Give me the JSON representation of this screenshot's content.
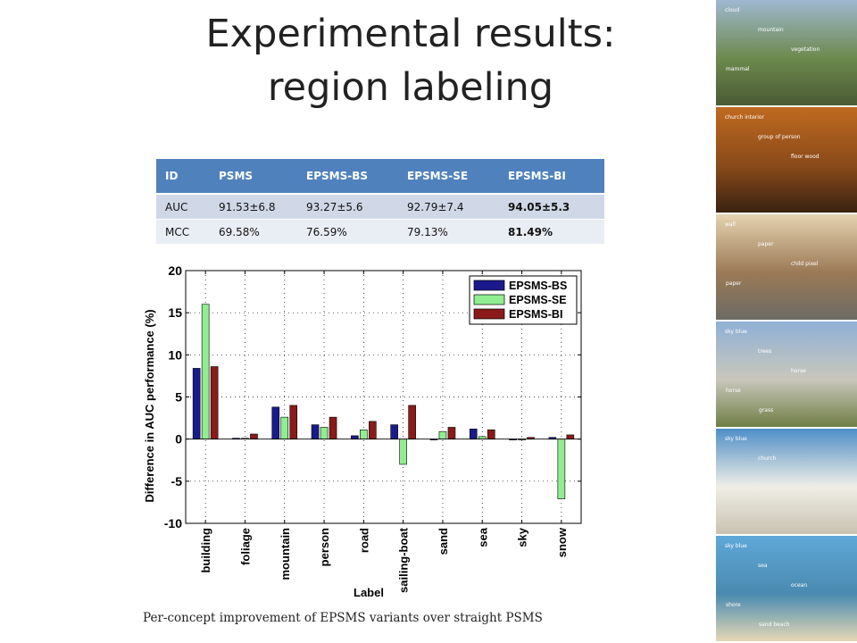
{
  "slide": {
    "title_line1": "Experimental results:",
    "title_line2": "region labeling",
    "caption": "Per-concept improvement of EPSMS variants over straight PSMS"
  },
  "table": {
    "headers": [
      "ID",
      "PSMS",
      "EPSMS-BS",
      "EPSMS-SE",
      "EPSMS-BI"
    ],
    "rows": [
      [
        "AUC",
        "91.53±6.8",
        "93.27±5.6",
        "92.79±7.4",
        "94.05±5.3"
      ],
      [
        "MCC",
        "69.58%",
        "76.59%",
        "79.13%",
        "81.49%"
      ]
    ]
  },
  "chart_data": {
    "type": "bar",
    "title": "",
    "xlabel": "Label",
    "ylabel": "Difference in AUC performance (%)",
    "ylim": [
      -10,
      20
    ],
    "yticks": [
      -10,
      -5,
      0,
      5,
      10,
      15,
      20
    ],
    "grid": true,
    "legend_position": "top-right",
    "categories": [
      "building",
      "foliage",
      "mountain",
      "person",
      "road",
      "sailing-boat",
      "sand",
      "sea",
      "sky",
      "snow"
    ],
    "series": [
      {
        "name": "EPSMS-BS",
        "color": "#1a1a8c",
        "values": [
          8.4,
          0.1,
          3.8,
          1.7,
          0.4,
          1.7,
          0.0,
          1.2,
          -0.1,
          0.2
        ]
      },
      {
        "name": "EPSMS-SE",
        "color": "#90ee90",
        "values": [
          16.0,
          0.1,
          2.6,
          1.4,
          1.1,
          -3.0,
          0.9,
          0.3,
          0.0,
          -7.1
        ]
      },
      {
        "name": "EPSMS-BI",
        "color": "#8b1a1a",
        "values": [
          8.6,
          0.6,
          4.0,
          2.6,
          2.1,
          4.0,
          1.4,
          1.1,
          0.2,
          0.5
        ]
      }
    ]
  },
  "image_strip": [
    {
      "colors": [
        "#9fb8d0",
        "#6d8a4e",
        "#4a5a34"
      ],
      "labels": [
        "cloud",
        "mountain",
        "vegetation",
        "mammal"
      ]
    },
    {
      "colors": [
        "#c06a20",
        "#8a4a1a",
        "#3a2210"
      ],
      "labels": [
        "church interior",
        "group of person",
        "floor wood"
      ]
    },
    {
      "colors": [
        "#e6d3b0",
        "#9b7a56",
        "#6d6a64"
      ],
      "labels": [
        "wall",
        "paper",
        "child pixel",
        "paper"
      ]
    },
    {
      "colors": [
        "#8fb0d6",
        "#c9c7bc",
        "#6f7f44"
      ],
      "labels": [
        "sky blue",
        "trees",
        "horse",
        "horse",
        "grass"
      ]
    },
    {
      "colors": [
        "#4f8ec7",
        "#f0eee6",
        "#c9c2b0"
      ],
      "labels": [
        "sky blue",
        "church"
      ]
    },
    {
      "colors": [
        "#5fa8d8",
        "#4a8ab0",
        "#e5d8b5"
      ],
      "labels": [
        "sky blue",
        "sea",
        "ocean",
        "shore",
        "sand beach"
      ]
    }
  ]
}
